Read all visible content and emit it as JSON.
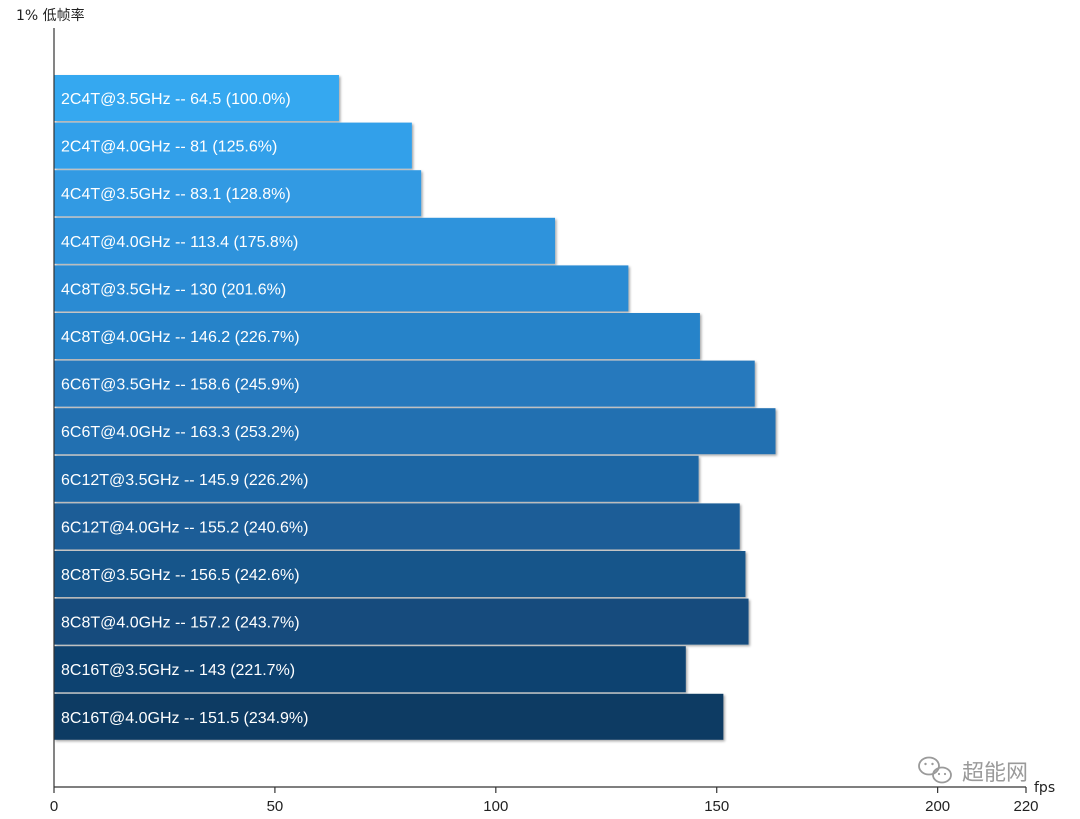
{
  "chart_data": {
    "type": "bar",
    "orientation": "horizontal",
    "ylabel": "1% 低帧率",
    "xlabel": "fps",
    "xlim": [
      0,
      220
    ],
    "xticks": [
      0,
      50,
      100,
      150,
      200,
      220
    ],
    "grid": false,
    "categories": [
      "2C4T@3.5GHz  --  64.5 (100.0%)",
      "2C4T@4.0GHz  --  81 (125.6%)",
      "4C4T@3.5GHz  --  83.1 (128.8%)",
      "4C4T@4.0GHz  --  113.4 (175.8%)",
      "4C8T@3.5GHz  --  130 (201.6%)",
      "4C8T@4.0GHz  --  146.2 (226.7%)",
      "6C6T@3.5GHz  --  158.6 (245.9%)",
      "6C6T@4.0GHz  --  163.3 (253.2%)",
      "6C12T@3.5GHz  --  145.9 (226.2%)",
      "6C12T@4.0GHz  --  155.2 (240.6%)",
      "8C8T@3.5GHz  --  156.5 (242.6%)",
      "8C8T@4.0GHz  --  157.2 (243.7%)",
      "8C16T@3.5GHz  --  143 (221.7%)",
      "8C16T@4.0GHz  --  151.5 (234.9%)"
    ],
    "values": [
      64.5,
      81,
      83.1,
      113.4,
      130,
      146.2,
      158.6,
      163.3,
      145.9,
      155.2,
      156.5,
      157.2,
      143,
      151.5
    ],
    "colors": [
      "#35a8f0",
      "#32a0ea",
      "#309ae3",
      "#2e93dc",
      "#2b8bd3",
      "#2783c9",
      "#2579bd",
      "#2170b1",
      "#1e66a4",
      "#1a5d97",
      "#17548a",
      "#134b7d",
      "#0f4270",
      "#0c3a63"
    ]
  },
  "watermark": {
    "text": "超能网",
    "icon": "wechat-icon",
    "color": "#9a9a9a"
  }
}
